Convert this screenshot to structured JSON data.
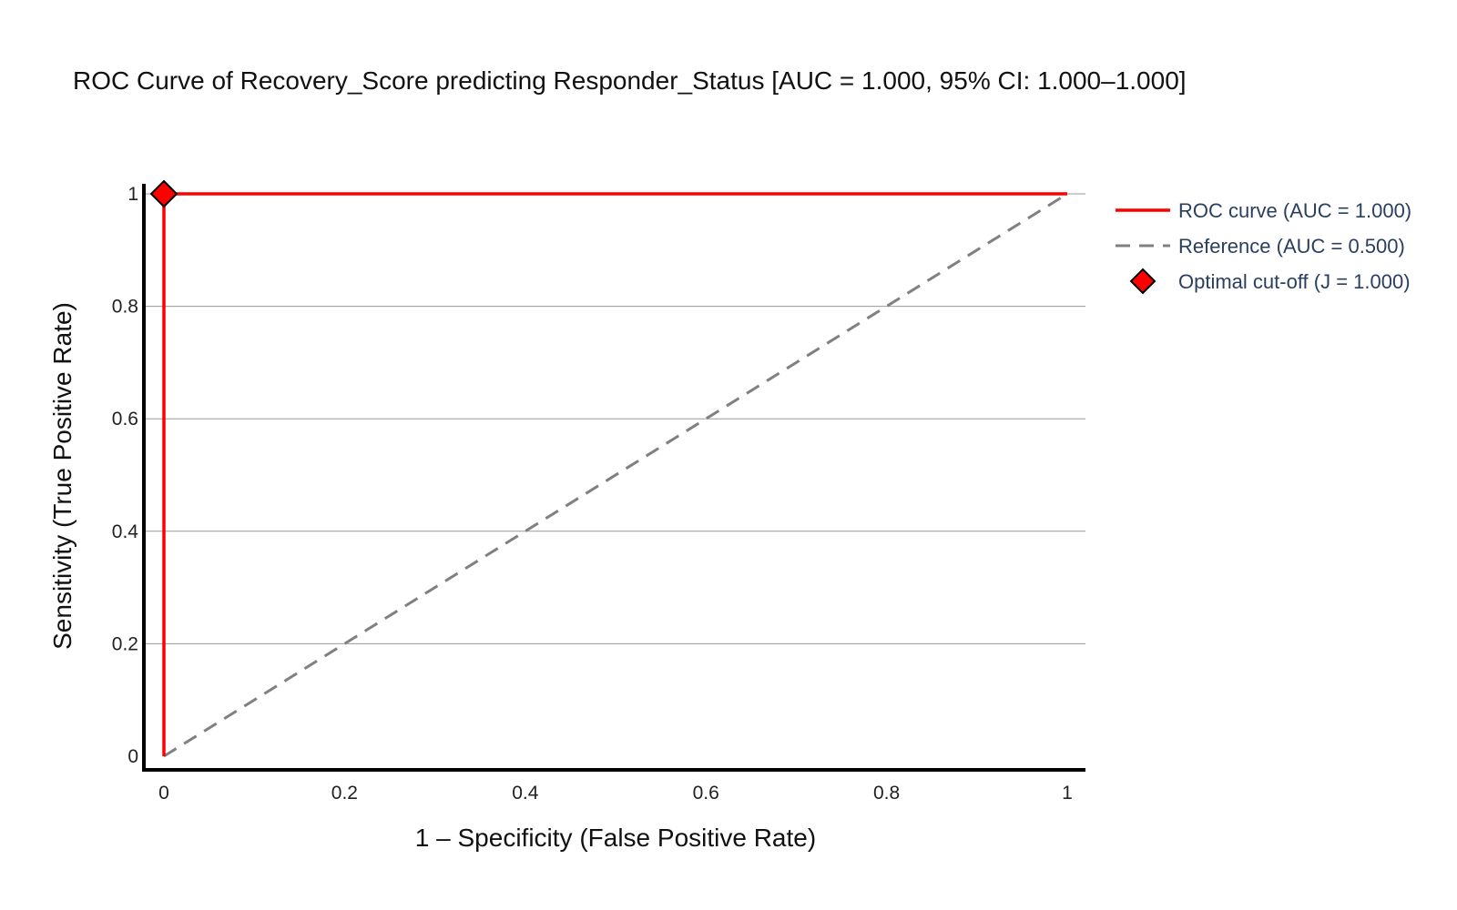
{
  "chart_data": {
    "type": "line",
    "title": "ROC Curve of Recovery_Score predicting Responder_Status  [AUC = 1.000, 95% CI: 1.000–1.000]",
    "xlabel": "1 – Specificity (False Positive Rate)",
    "ylabel": "Sensitivity (True Positive Rate)",
    "xlim": [
      0,
      1
    ],
    "ylim": [
      0,
      1
    ],
    "x_ticks": [
      0,
      0.2,
      0.4,
      0.6,
      0.8,
      1
    ],
    "x_tick_labels": [
      "0",
      "0.2",
      "0.4",
      "0.6",
      "0.8",
      "1"
    ],
    "y_ticks": [
      0,
      0.2,
      0.4,
      0.6,
      0.8,
      1
    ],
    "y_tick_labels": [
      "0",
      "0.2",
      "0.4",
      "0.6",
      "0.8",
      "1"
    ],
    "grid": "horizontal",
    "legend_position": "right",
    "series": [
      {
        "name": "ROC curve (AUC = 1.000)",
        "kind": "line",
        "style": "solid",
        "color": "#ff0000",
        "x": [
          0,
          0,
          1
        ],
        "y": [
          0,
          1,
          1
        ]
      },
      {
        "name": "Reference (AUC = 0.500)",
        "kind": "line",
        "style": "dashed",
        "color": "#808080",
        "x": [
          0,
          1
        ],
        "y": [
          0,
          1
        ]
      },
      {
        "name": "Optimal cut-off (J = 1.000)",
        "kind": "marker",
        "marker": "diamond",
        "color": "#ff0000",
        "x": [
          0
        ],
        "y": [
          1
        ]
      }
    ]
  }
}
